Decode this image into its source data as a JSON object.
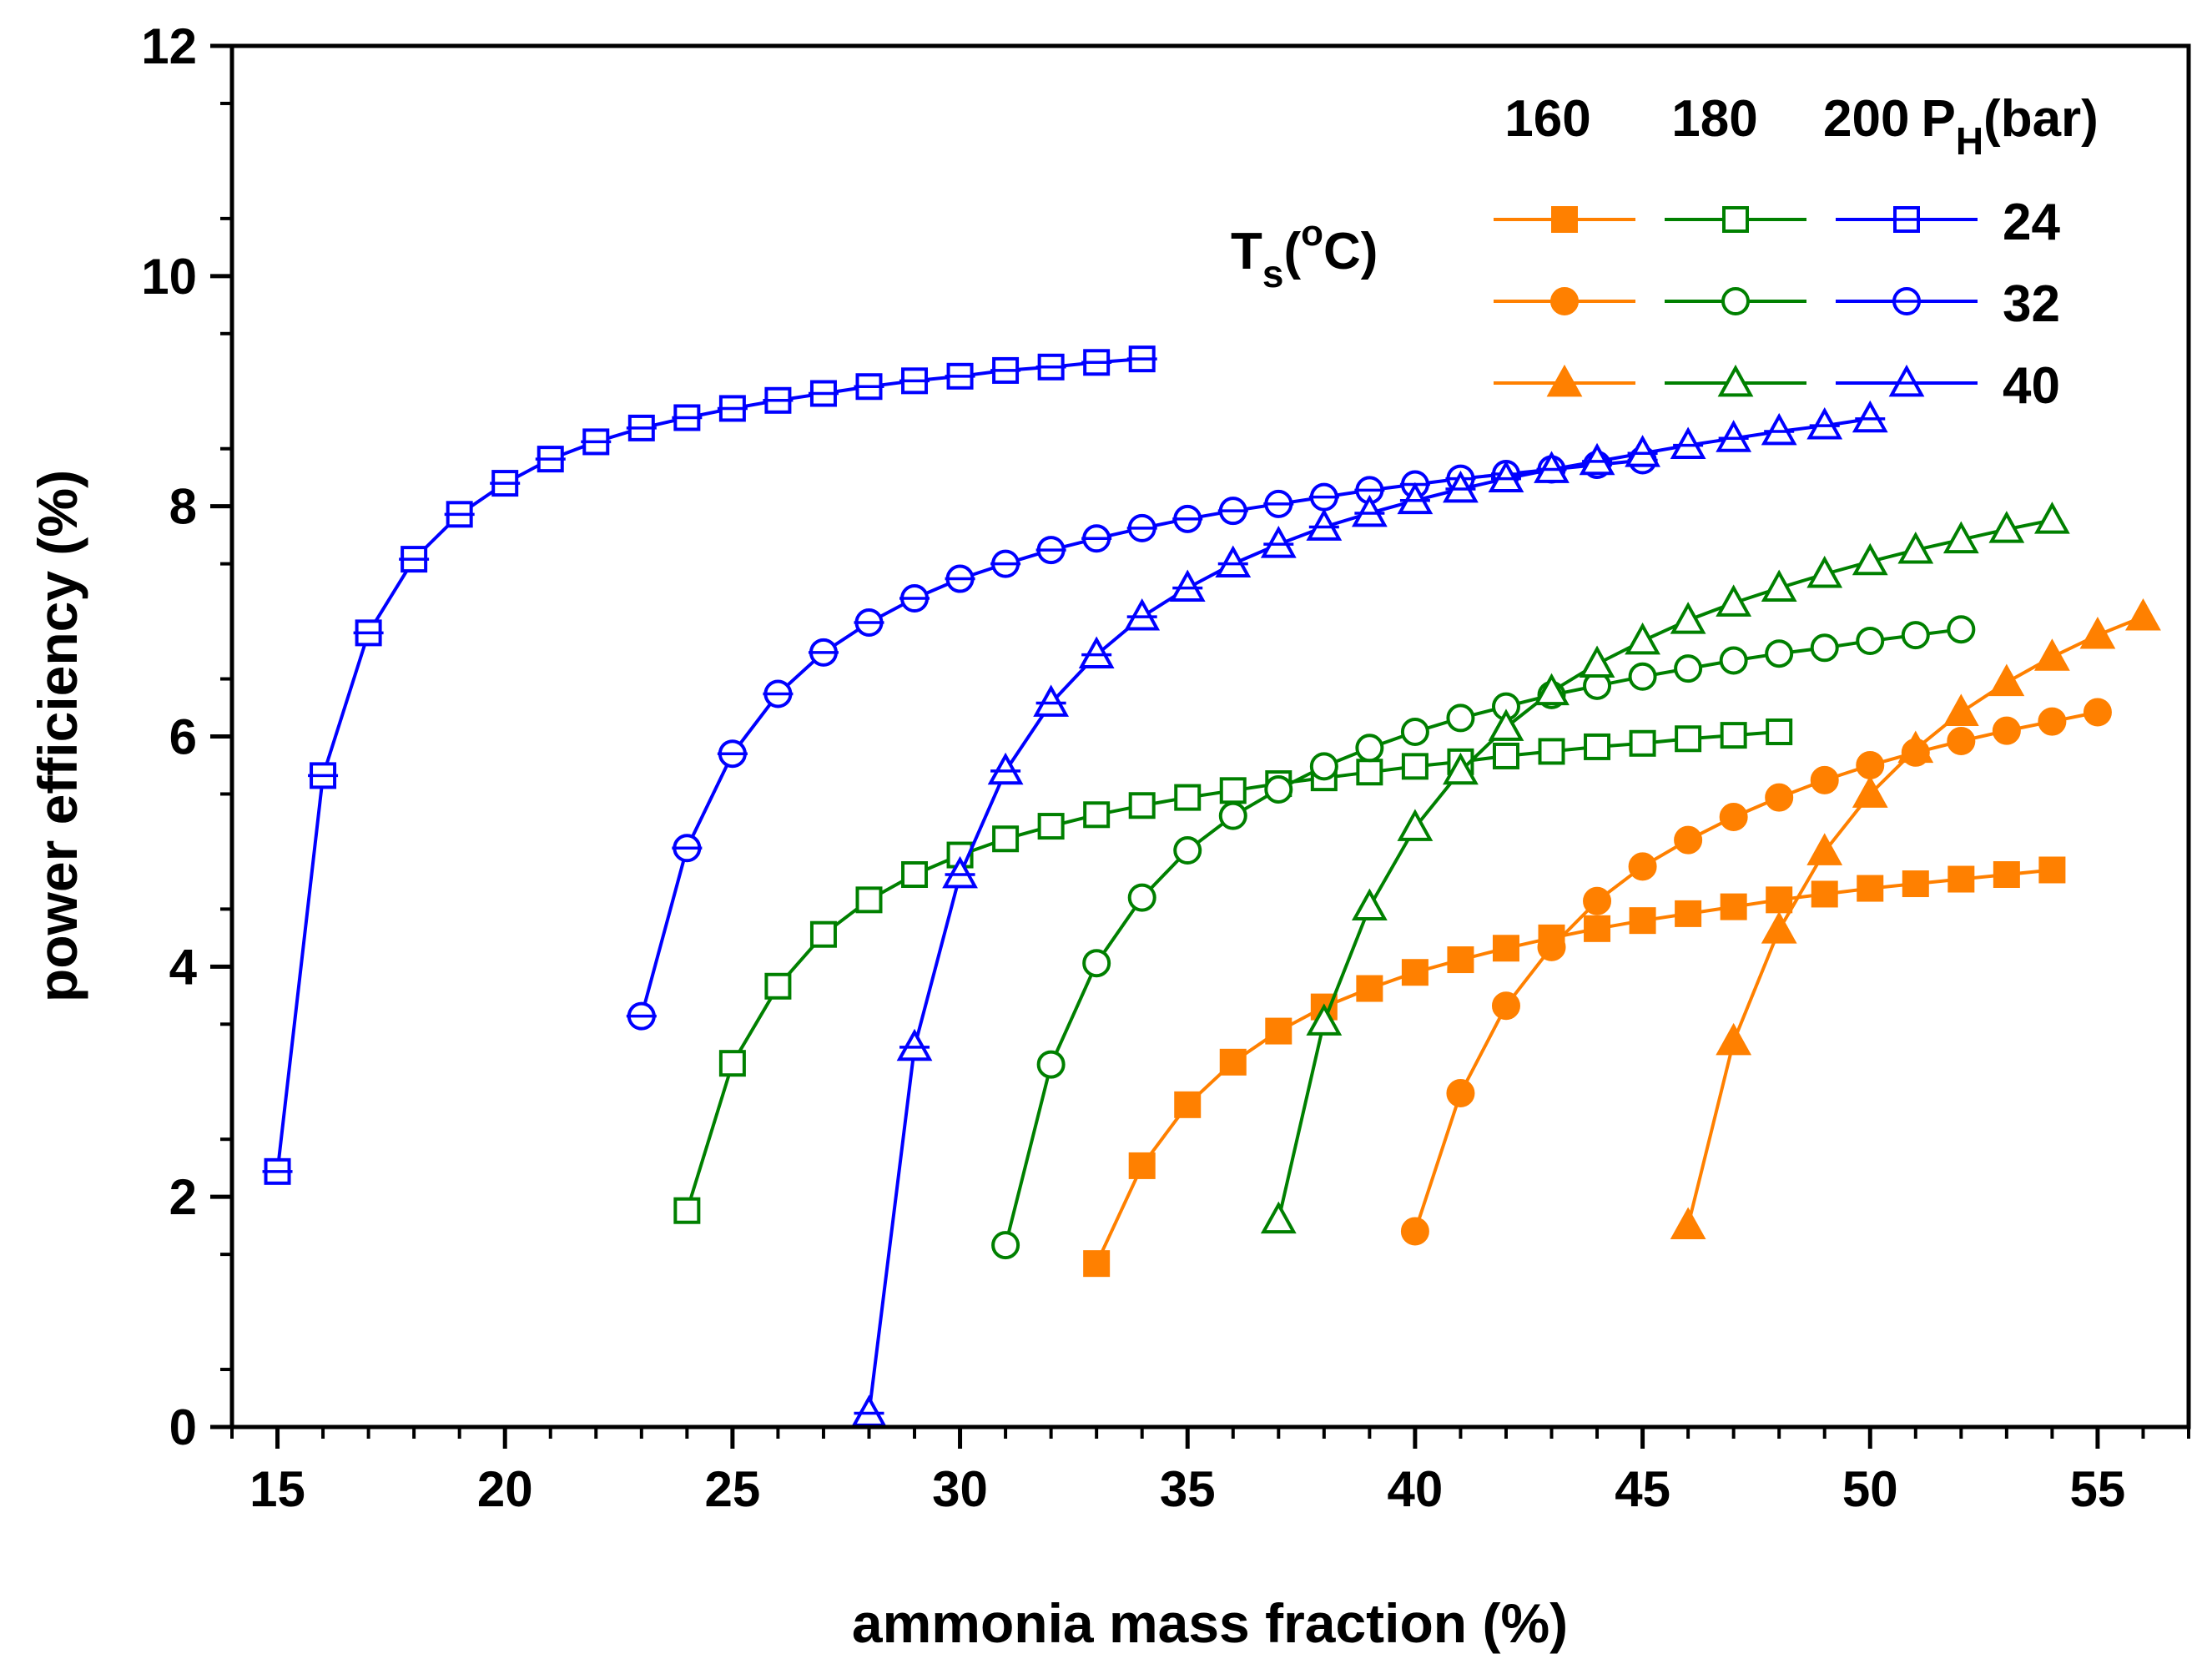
{
  "chart_data": {
    "type": "line",
    "title": "",
    "xlabel": "ammonia mass fraction (%)",
    "ylabel": "power efficiency (%)",
    "xlim": [
      14,
      57
    ],
    "ylim": [
      0,
      12
    ],
    "xticks": [
      15,
      20,
      25,
      30,
      35,
      40,
      45,
      50,
      55
    ],
    "yticks": [
      0,
      2,
      4,
      6,
      8,
      10,
      12
    ],
    "grid": false,
    "legend": {
      "position": "top-right",
      "header_160": "160",
      "header_180": "180",
      "header_200": "200",
      "header_ph_prefix": "P",
      "header_ph_sub": "H",
      "header_ph_suffix": "(bar)",
      "ts_prefix": "T",
      "ts_sub": "s",
      "ts_open": "(",
      "ts_sup": "o",
      "ts_close": "C)",
      "rows": [
        "24",
        "32",
        "40"
      ]
    },
    "colors": {
      "160": "#FF8000",
      "180": "#008000",
      "200": "#0000FF"
    },
    "series": [
      {
        "name": "160 bar, 24 °C",
        "pressure": "160",
        "ts": "24",
        "marker": "square",
        "filled": true,
        "x": [
          33,
          34,
          35,
          36,
          37,
          38,
          39,
          40,
          41,
          42,
          43,
          44,
          45,
          46,
          47,
          48,
          49,
          50,
          51,
          52,
          53,
          54
        ],
        "y": [
          1.42,
          2.27,
          2.8,
          3.17,
          3.44,
          3.65,
          3.81,
          3.95,
          4.06,
          4.16,
          4.25,
          4.33,
          4.4,
          4.46,
          4.52,
          4.58,
          4.63,
          4.68,
          4.72,
          4.76,
          4.8,
          4.84
        ]
      },
      {
        "name": "160 bar, 32 °C",
        "pressure": "160",
        "ts": "32",
        "marker": "circle",
        "filled": true,
        "x": [
          40,
          41,
          42,
          43,
          44,
          45,
          46,
          47,
          48,
          49,
          50,
          51,
          52,
          53,
          54,
          55
        ],
        "y": [
          1.7,
          2.9,
          3.66,
          4.17,
          4.57,
          4.87,
          5.1,
          5.3,
          5.47,
          5.62,
          5.75,
          5.86,
          5.96,
          6.05,
          6.13,
          6.21
        ]
      },
      {
        "name": "160 bar, 40 °C",
        "pressure": "160",
        "ts": "40",
        "marker": "triangle",
        "filled": true,
        "x": [
          46,
          47,
          48,
          49,
          50,
          51,
          52,
          53,
          54,
          55,
          56
        ],
        "y": [
          1.75,
          3.35,
          4.32,
          5.0,
          5.5,
          5.89,
          6.21,
          6.47,
          6.69,
          6.88,
          7.04
        ]
      },
      {
        "name": "180 bar, 24 °C",
        "pressure": "180",
        "ts": "24",
        "marker": "square",
        "filled": false,
        "x": [
          24,
          25,
          26,
          27,
          28,
          29,
          30,
          31,
          32,
          33,
          34,
          35,
          36,
          37,
          38,
          39,
          40,
          41,
          42,
          43,
          44,
          45,
          46,
          47,
          48
        ],
        "y": [
          1.88,
          3.16,
          3.83,
          4.28,
          4.58,
          4.8,
          4.97,
          5.11,
          5.22,
          5.32,
          5.4,
          5.47,
          5.53,
          5.59,
          5.64,
          5.69,
          5.74,
          5.78,
          5.83,
          5.87,
          5.91,
          5.94,
          5.98,
          6.01,
          6.04
        ]
      },
      {
        "name": "180 bar, 32 °C",
        "pressure": "180",
        "ts": "32",
        "marker": "circle",
        "filled": false,
        "x": [
          31,
          32,
          33,
          34,
          35,
          36,
          37,
          38,
          39,
          40,
          41,
          42,
          43,
          44,
          45,
          46,
          47,
          48,
          49,
          50,
          51,
          52
        ],
        "y": [
          1.58,
          3.15,
          4.03,
          4.6,
          5.01,
          5.31,
          5.54,
          5.74,
          5.9,
          6.04,
          6.16,
          6.26,
          6.36,
          6.44,
          6.52,
          6.59,
          6.66,
          6.72,
          6.77,
          6.83,
          6.88,
          6.93
        ]
      },
      {
        "name": "180 bar, 40 °C",
        "pressure": "180",
        "ts": "40",
        "marker": "triangle",
        "filled": false,
        "x": [
          37,
          38,
          39,
          40,
          41,
          42,
          43,
          44,
          45,
          46,
          47,
          48,
          49,
          50,
          51,
          52,
          53,
          54
        ],
        "y": [
          1.8,
          3.52,
          4.52,
          5.21,
          5.7,
          6.08,
          6.39,
          6.63,
          6.83,
          7.01,
          7.16,
          7.29,
          7.41,
          7.52,
          7.62,
          7.71,
          7.8,
          7.88
        ]
      },
      {
        "name": "200 bar, 24 °C",
        "pressure": "200",
        "ts": "24",
        "marker": "square",
        "filled": false,
        "cross": true,
        "x": [
          15,
          16,
          17,
          18,
          19,
          20,
          21,
          22,
          23,
          24,
          25,
          26,
          27,
          28,
          29,
          30,
          31,
          32,
          33,
          34
        ],
        "y": [
          2.22,
          5.66,
          6.9,
          7.54,
          7.93,
          8.2,
          8.41,
          8.56,
          8.68,
          8.77,
          8.85,
          8.92,
          8.98,
          9.04,
          9.09,
          9.13,
          9.18,
          9.21,
          9.25,
          9.28
        ]
      },
      {
        "name": "200 bar, 32 °C",
        "pressure": "200",
        "ts": "32",
        "marker": "circle",
        "filled": false,
        "cross": true,
        "x": [
          23,
          24,
          25,
          26,
          27,
          28,
          29,
          30,
          31,
          32,
          33,
          34,
          35,
          36,
          37,
          38,
          39,
          40,
          41,
          42,
          43,
          44,
          45
        ],
        "y": [
          3.57,
          5.03,
          5.85,
          6.37,
          6.73,
          6.99,
          7.2,
          7.37,
          7.5,
          7.62,
          7.72,
          7.81,
          7.89,
          7.96,
          8.02,
          8.08,
          8.14,
          8.19,
          8.24,
          8.28,
          8.32,
          8.36,
          8.4
        ]
      },
      {
        "name": "200 bar, 40 °C",
        "pressure": "200",
        "ts": "40",
        "marker": "triangle",
        "filled": false,
        "cross": true,
        "x": [
          28,
          29,
          30,
          31,
          32,
          33,
          34,
          35,
          36,
          37,
          38,
          39,
          40,
          41,
          42,
          43,
          44,
          45,
          46,
          47,
          48,
          49,
          50
        ],
        "y": [
          0.12,
          3.3,
          4.8,
          5.7,
          6.29,
          6.71,
          7.04,
          7.29,
          7.5,
          7.67,
          7.82,
          7.94,
          8.05,
          8.15,
          8.24,
          8.32,
          8.39,
          8.46,
          8.53,
          8.59,
          8.65,
          8.7,
          8.76
        ]
      }
    ]
  }
}
